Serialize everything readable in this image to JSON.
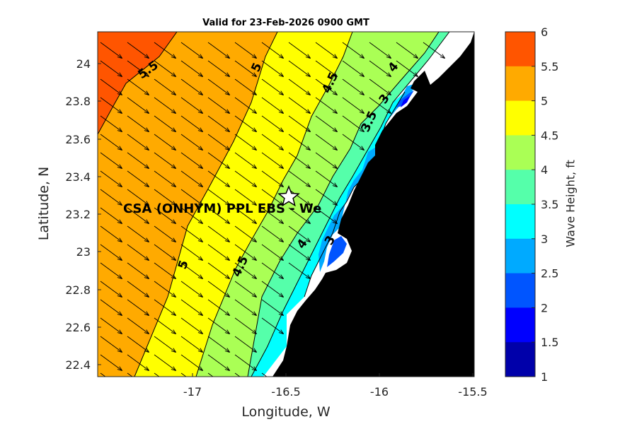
{
  "title": "Valid for 23-Feb-2026 0900 GMT",
  "map": {
    "xlabel": "Longitude, W",
    "ylabel": "Latitude, N",
    "station_label": "CSA (ONHYM) PPL EBS  - We",
    "station_marker": "star-icon",
    "x_ticks": [
      "-17",
      "-16.5",
      "-16",
      "-15.5"
    ],
    "y_ticks": [
      "24",
      "23.8",
      "23.6",
      "23.4",
      "23.2",
      "23",
      "22.8",
      "22.6",
      "22.4"
    ],
    "contour_labels": [
      "5.5",
      "5",
      "4.5",
      "4",
      "3.5",
      "3",
      "5",
      "4.5",
      "4",
      "3"
    ],
    "land_color": "#000000",
    "arrow_color": "#000000"
  },
  "colorbar": {
    "label": "Wave Height, ft",
    "ticks": [
      "6",
      "5.5",
      "5",
      "4.5",
      "4",
      "3.5",
      "3",
      "2.5",
      "2",
      "1.5",
      "1"
    ],
    "colors": [
      "#ff5500",
      "#ffaa00",
      "#ffff00",
      "#aaff55",
      "#55ffaa",
      "#00ffff",
      "#00aaff",
      "#0055ff",
      "#0000ff",
      "#0000aa"
    ]
  }
}
